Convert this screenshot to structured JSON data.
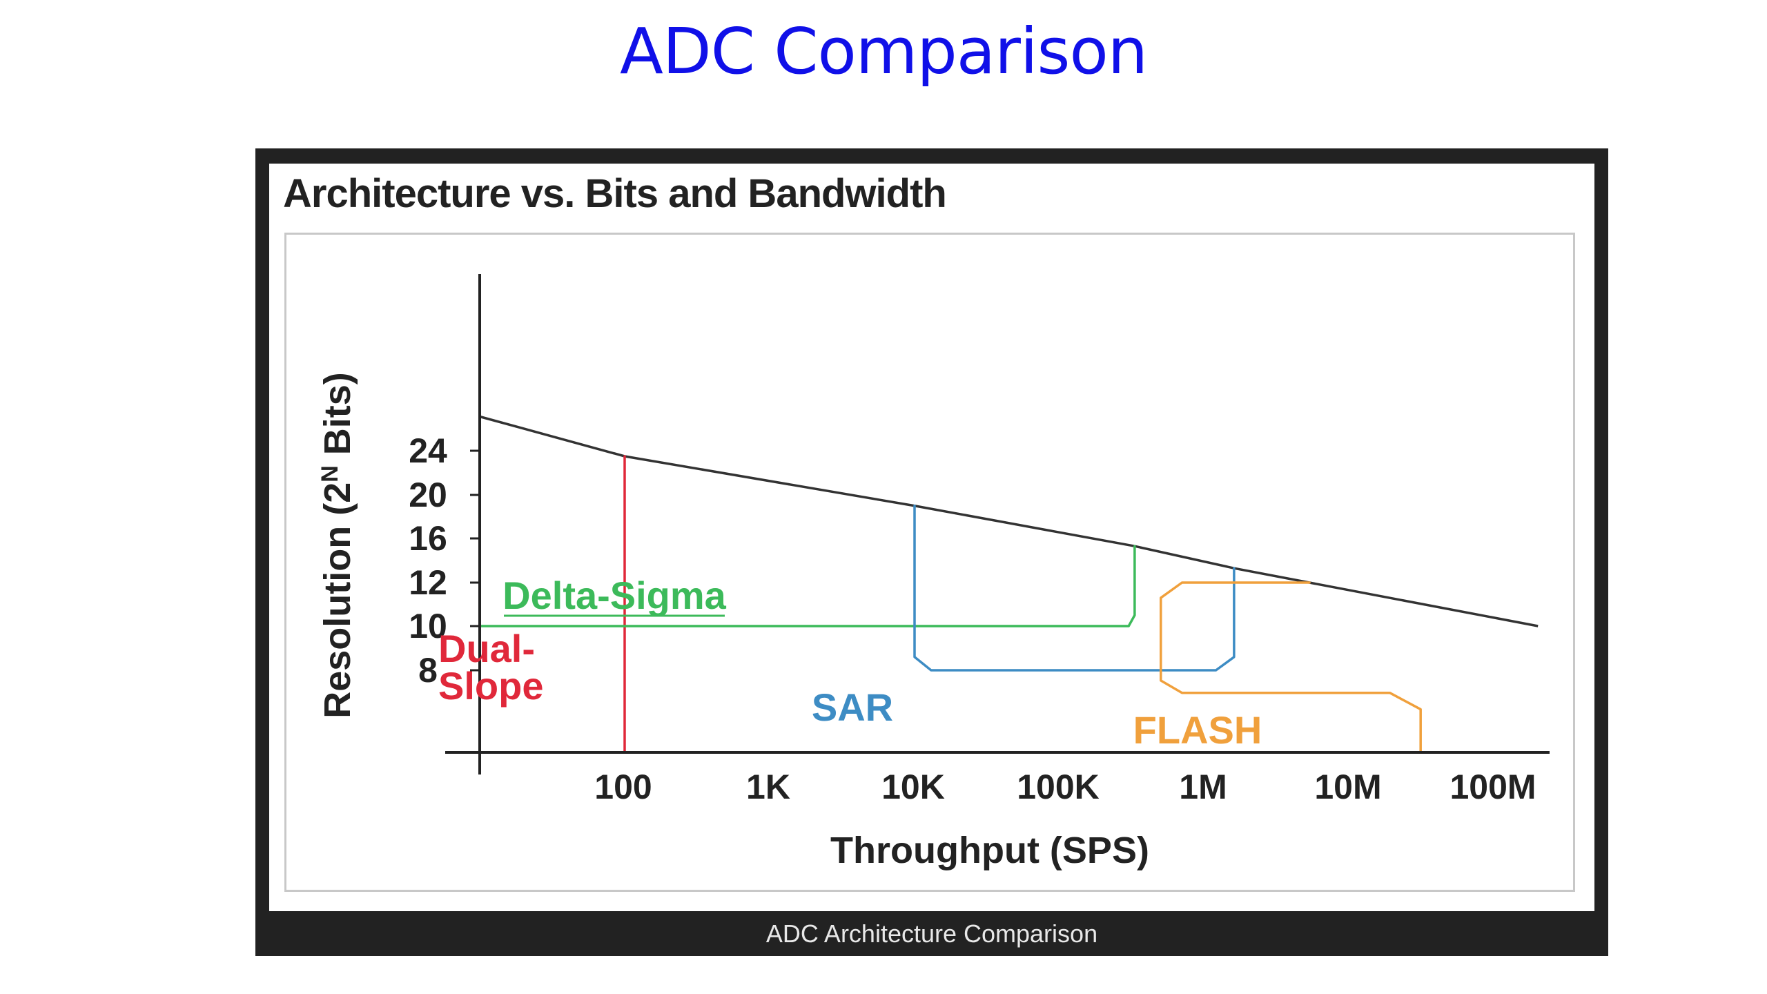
{
  "slide": {
    "title": "ADC Comparison"
  },
  "figure": {
    "caption": "ADC Architecture Comparison"
  },
  "chart_data": {
    "type": "line",
    "title": "Architecture vs. Bits and Bandwidth",
    "xlabel": "Throughput (SPS)",
    "ylabel_main": "Resolution (2",
    "ylabel_sup": "N",
    "ylabel_tail": " Bits)",
    "x_scale": "log",
    "x_ticks": [
      {
        "value": 100,
        "label": "100"
      },
      {
        "value": 1000,
        "label": "1K"
      },
      {
        "value": 10000,
        "label": "10K"
      },
      {
        "value": 100000,
        "label": "100K"
      },
      {
        "value": 1000000,
        "label": "1M"
      },
      {
        "value": 10000000,
        "label": "10M"
      },
      {
        "value": 100000000,
        "label": "100M"
      }
    ],
    "y_ticks": [
      8,
      10,
      12,
      16,
      20,
      24
    ],
    "grid": false,
    "limit_line": {
      "color": "#333333",
      "points": [
        [
          10,
          26.2
        ],
        [
          100,
          23.5
        ],
        [
          10000,
          19
        ],
        [
          330000,
          15.3
        ],
        [
          1600000,
          13.3
        ],
        [
          5300000,
          12
        ],
        [
          200000000,
          10
        ]
      ]
    },
    "series": [
      {
        "name": "Dual-Slope",
        "label_lines": [
          "Dual-",
          "Slope"
        ],
        "color": "#e0283a",
        "points": [
          [
            100,
            4
          ],
          [
            100,
            23.5
          ]
        ]
      },
      {
        "name": "Delta-Sigma",
        "label_lines": [
          "Delta-Sigma"
        ],
        "color": "#3cba5a",
        "points": [
          [
            10,
            10
          ],
          [
            300000,
            10
          ],
          [
            330000,
            10.5
          ],
          [
            330000,
            15.3
          ]
        ]
      },
      {
        "name": "SAR",
        "label_lines": [
          "SAR"
        ],
        "color": "#3d8cc4",
        "points": [
          [
            10000,
            19
          ],
          [
            10000,
            8.6
          ],
          [
            13000,
            8
          ],
          [
            1200000,
            8
          ],
          [
            1600000,
            8.6
          ],
          [
            1600000,
            13.3
          ]
        ]
      },
      {
        "name": "FLASH",
        "label_lines": [
          "FLASH"
        ],
        "color": "#f0a03c",
        "points": [
          [
            5300000,
            12
          ],
          [
            700000,
            12
          ],
          [
            500000,
            11.3
          ],
          [
            500000,
            7.5
          ],
          [
            700000,
            6.9
          ],
          [
            19000000,
            6.9
          ],
          [
            31000000,
            6.1
          ],
          [
            31000000,
            4
          ]
        ]
      }
    ]
  }
}
